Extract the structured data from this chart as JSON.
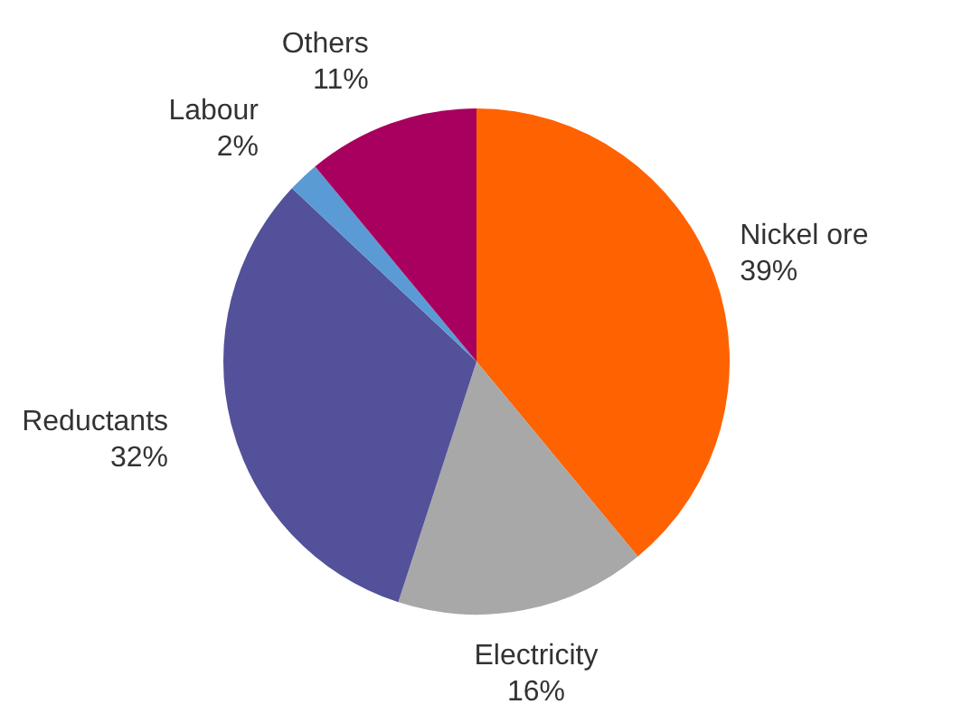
{
  "chart_data": {
    "type": "pie",
    "categories": [
      "Nickel ore",
      "Electricity",
      "Reductants",
      "Labour",
      "Others"
    ],
    "values": [
      39,
      16,
      32,
      2,
      11
    ],
    "value_labels": [
      "39%",
      "16%",
      "32%",
      "2%",
      "11%"
    ],
    "colors": [
      "#ff6200",
      "#a8a8a8",
      "#525199",
      "#5b9bd5",
      "#a8005e"
    ],
    "legend": false
  }
}
